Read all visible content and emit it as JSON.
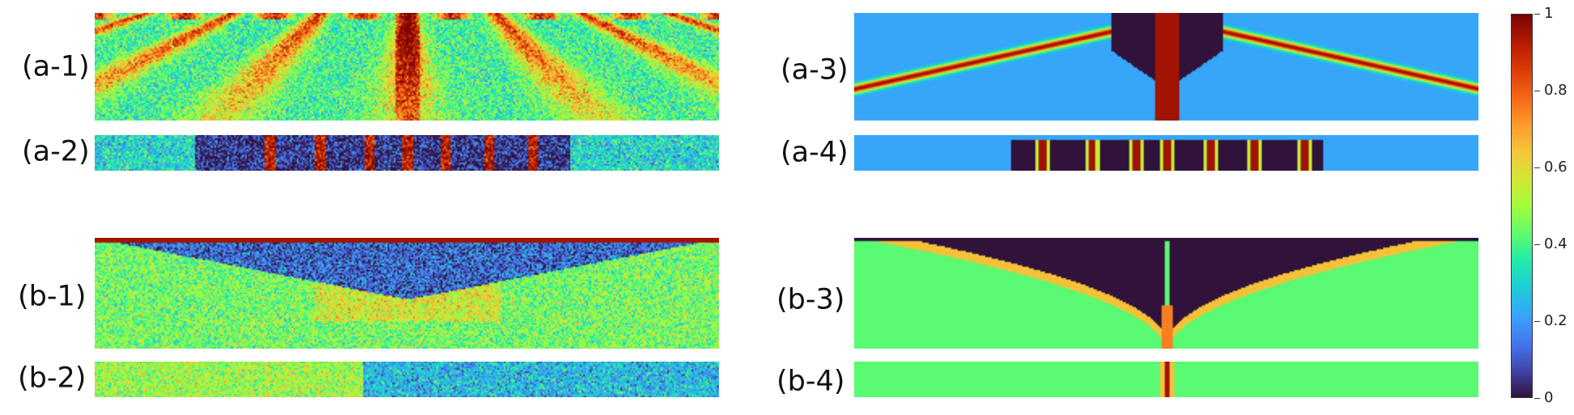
{
  "figure": {
    "panels": [
      {
        "id": "a-1",
        "label": "(a-1)",
        "kind": "exp",
        "pattern": "streaks"
      },
      {
        "id": "a-2",
        "label": "(a-2)",
        "kind": "exp",
        "pattern": "stripes"
      },
      {
        "id": "b-1",
        "label": "(b-1)",
        "kind": "exp",
        "pattern": "v-shape"
      },
      {
        "id": "b-2",
        "label": "(b-2)",
        "kind": "exp",
        "pattern": "uniform"
      },
      {
        "id": "a-3",
        "label": "(a-3)",
        "kind": "sim",
        "pattern": "streaks"
      },
      {
        "id": "a-4",
        "label": "(a-4)",
        "kind": "sim",
        "pattern": "stripes"
      },
      {
        "id": "b-3",
        "label": "(b-3)",
        "kind": "sim",
        "pattern": "v-shape"
      },
      {
        "id": "b-4",
        "label": "(b-4)",
        "kind": "sim",
        "pattern": "center-line"
      }
    ],
    "colorbar": {
      "colormap": "turbo",
      "min": 0,
      "max": 1,
      "tick_labels": [
        "0",
        "0.2",
        "0.4",
        "0.6",
        "0.8",
        "1"
      ]
    }
  }
}
